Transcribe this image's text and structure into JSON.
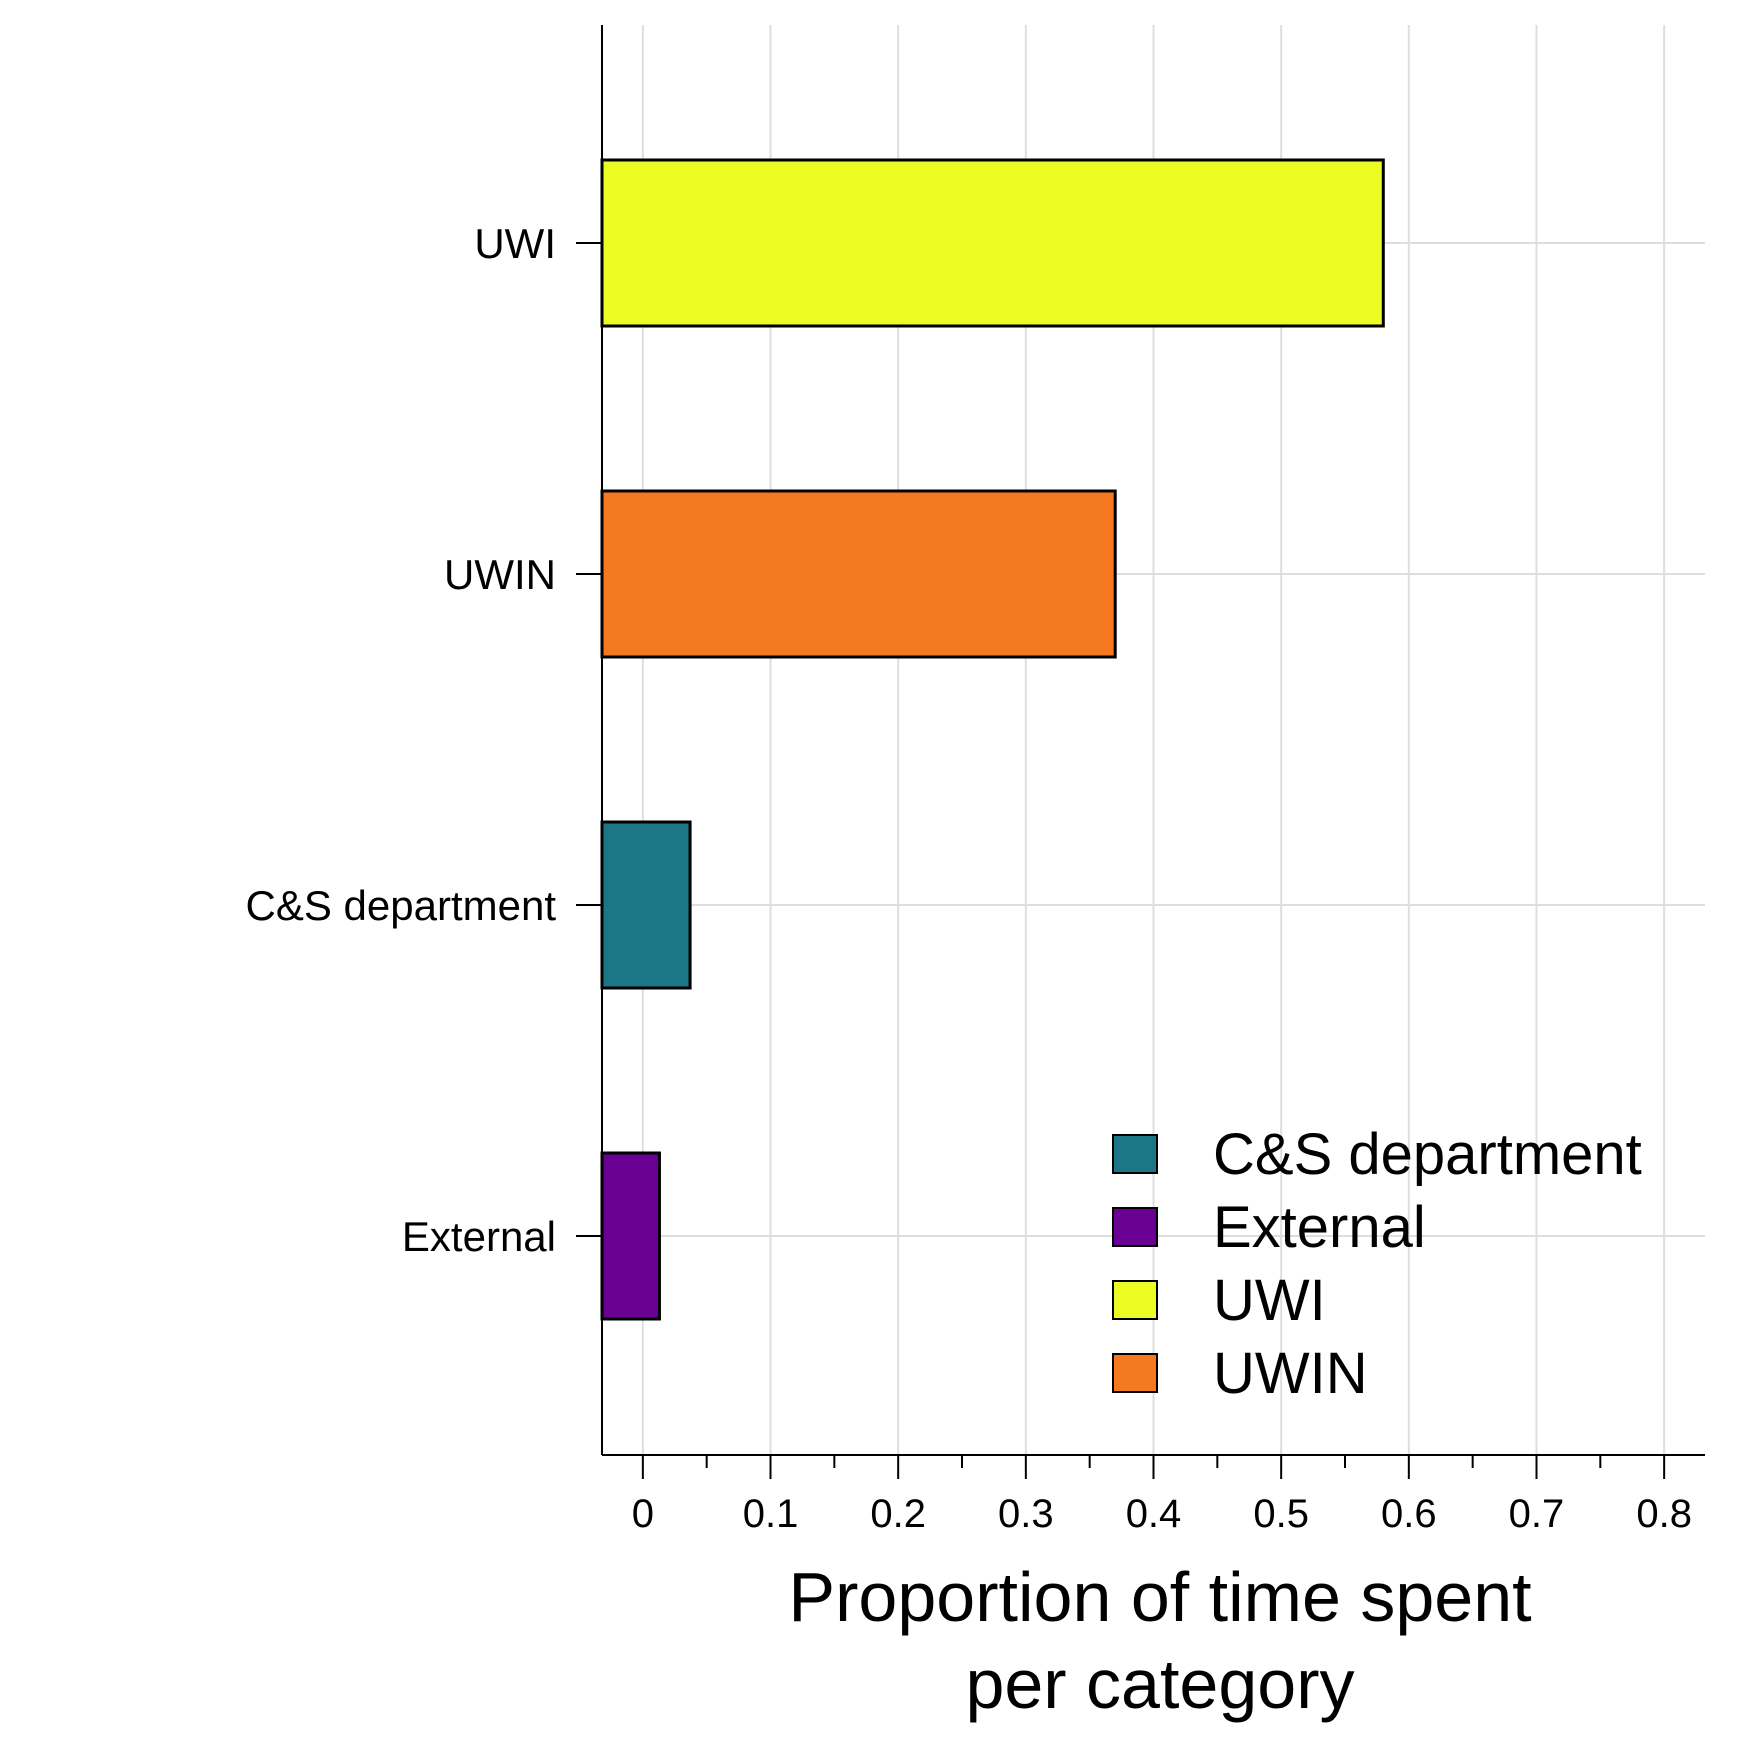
{
  "chart_data": {
    "type": "bar",
    "orientation": "horizontal",
    "categories": [
      "UWI",
      "UWIN",
      "C&S department",
      "External"
    ],
    "values": [
      0.58,
      0.37,
      0.037,
      0.013
    ],
    "colors": [
      "#eafc22",
      "#f47920",
      "#1b7685",
      "#6a0093"
    ],
    "xlabel": [
      "Proportion of time spent",
      "per category"
    ],
    "xlim": [
      -0.032,
      0.832
    ],
    "xticks": [
      0,
      0.1,
      0.2,
      0.3,
      0.4,
      0.5,
      0.6,
      0.7,
      0.8
    ],
    "xtick_labels": [
      "0",
      "0.1",
      "0.2",
      "0.3",
      "0.4",
      "0.5",
      "0.6",
      "0.7",
      "0.8"
    ],
    "minor_xticks": [
      0.05,
      0.15,
      0.25,
      0.35,
      0.45,
      0.55,
      0.65,
      0.75
    ],
    "grid": true,
    "legend": {
      "position": "bottom-right",
      "entries": [
        {
          "label": "C&S department",
          "color": "#1b7685"
        },
        {
          "label": "External",
          "color": "#6a0093"
        },
        {
          "label": "UWI",
          "color": "#eafc22"
        },
        {
          "label": "UWIN",
          "color": "#f47920"
        }
      ]
    }
  }
}
